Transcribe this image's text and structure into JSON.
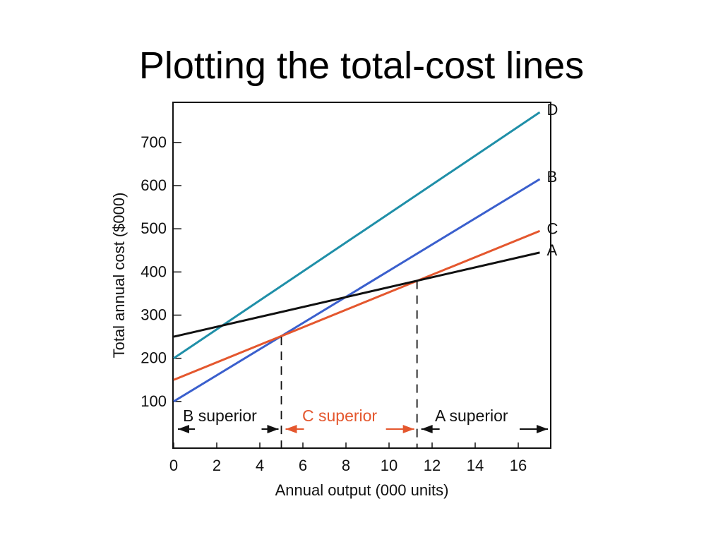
{
  "slide_title": "Plotting the total-cost lines",
  "chart_data": {
    "type": "line",
    "title": "",
    "xlabel": "Annual output (000 units)",
    "ylabel": "Total annual cost ($000)",
    "xlim": [
      0,
      17.5
    ],
    "ylim": [
      0,
      780
    ],
    "x_ticks": [
      "0",
      "2",
      "4",
      "6",
      "8",
      "10",
      "12",
      "14",
      "16"
    ],
    "y_ticks": [
      "100",
      "200",
      "300",
      "400",
      "500",
      "600",
      "700"
    ],
    "grid": false,
    "series": [
      {
        "name": "D",
        "x": [
          0,
          17
        ],
        "y": [
          200,
          770
        ],
        "color": "#1f8fa8"
      },
      {
        "name": "B",
        "x": [
          0,
          17
        ],
        "y": [
          100,
          615
        ],
        "color": "#3a5fcd"
      },
      {
        "name": "C",
        "x": [
          0,
          17
        ],
        "y": [
          150,
          495
        ],
        "color": "#e4572e"
      },
      {
        "name": "A",
        "x": [
          0,
          17
        ],
        "y": [
          250,
          445
        ],
        "color": "#111111"
      }
    ],
    "breakevens": [
      5,
      11.3
    ],
    "regions": [
      {
        "label": "B superior",
        "x_start": 0,
        "x_end": 5,
        "color": "#111111"
      },
      {
        "label": "C superior",
        "x_start": 5,
        "x_end": 11.3,
        "color": "#e4572e"
      },
      {
        "label": "A superior",
        "x_start": 11.3,
        "x_end": 17.5,
        "color": "#111111"
      }
    ]
  }
}
